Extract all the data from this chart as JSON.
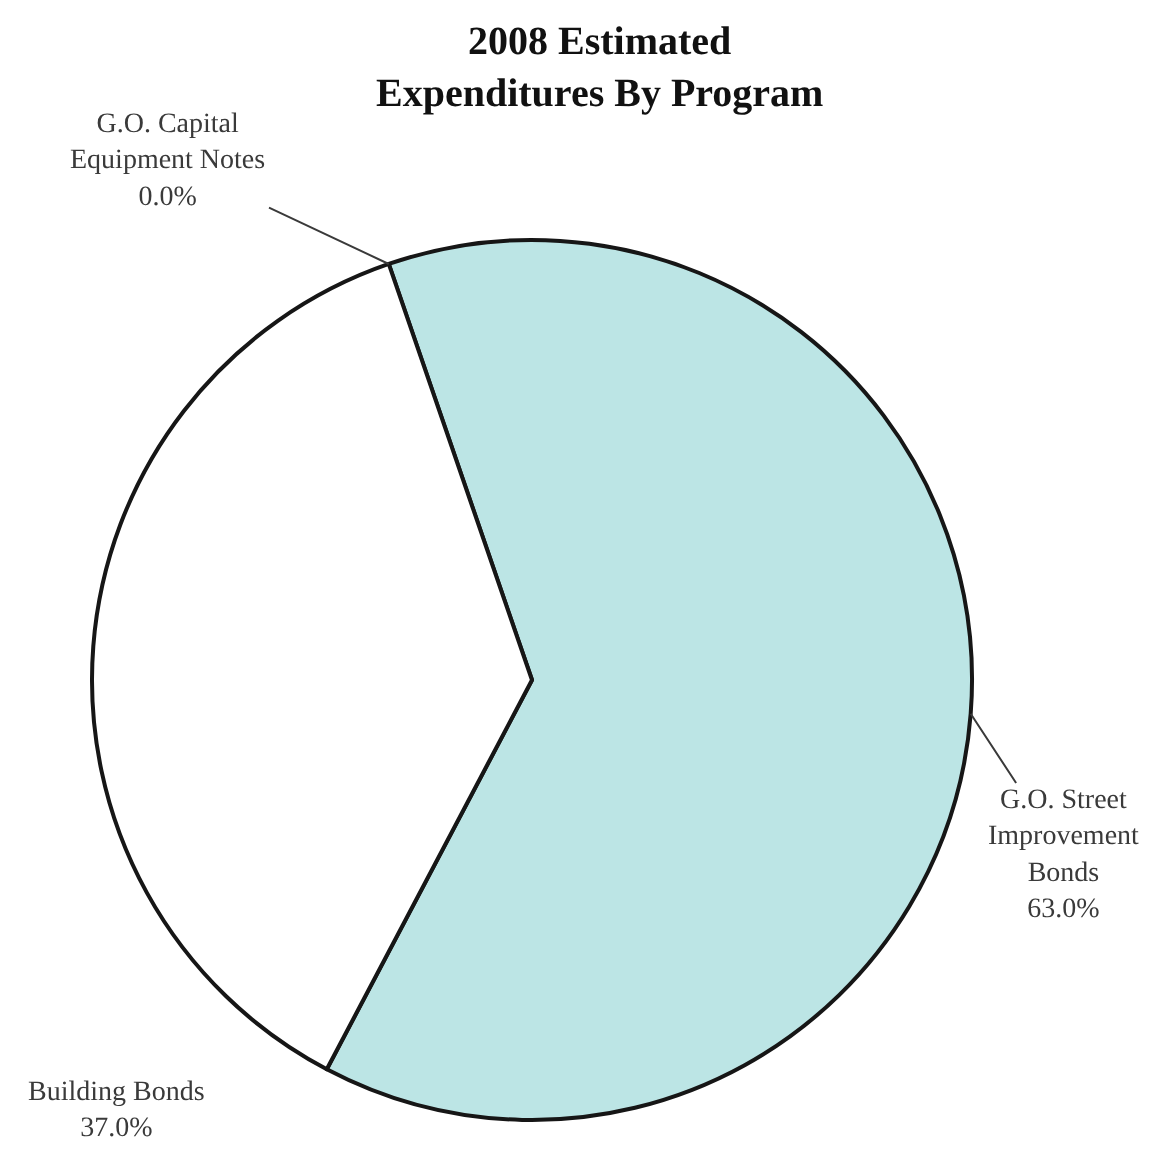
{
  "chart_data": {
    "type": "pie",
    "title": "2008 Estimated\nExpenditures By Program",
    "categories": [
      "G.O. Capital\nEquipment Notes",
      "G.O. Street\nImprovement\nBonds",
      "Building Bonds"
    ],
    "values": [
      0.0,
      63.0,
      37.0
    ],
    "colors": [
      "#ffffff",
      "#bce5e5",
      "#ffffff"
    ],
    "value_labels": [
      "0.0%",
      "63.0%",
      "37.0%"
    ],
    "legend": false
  }
}
